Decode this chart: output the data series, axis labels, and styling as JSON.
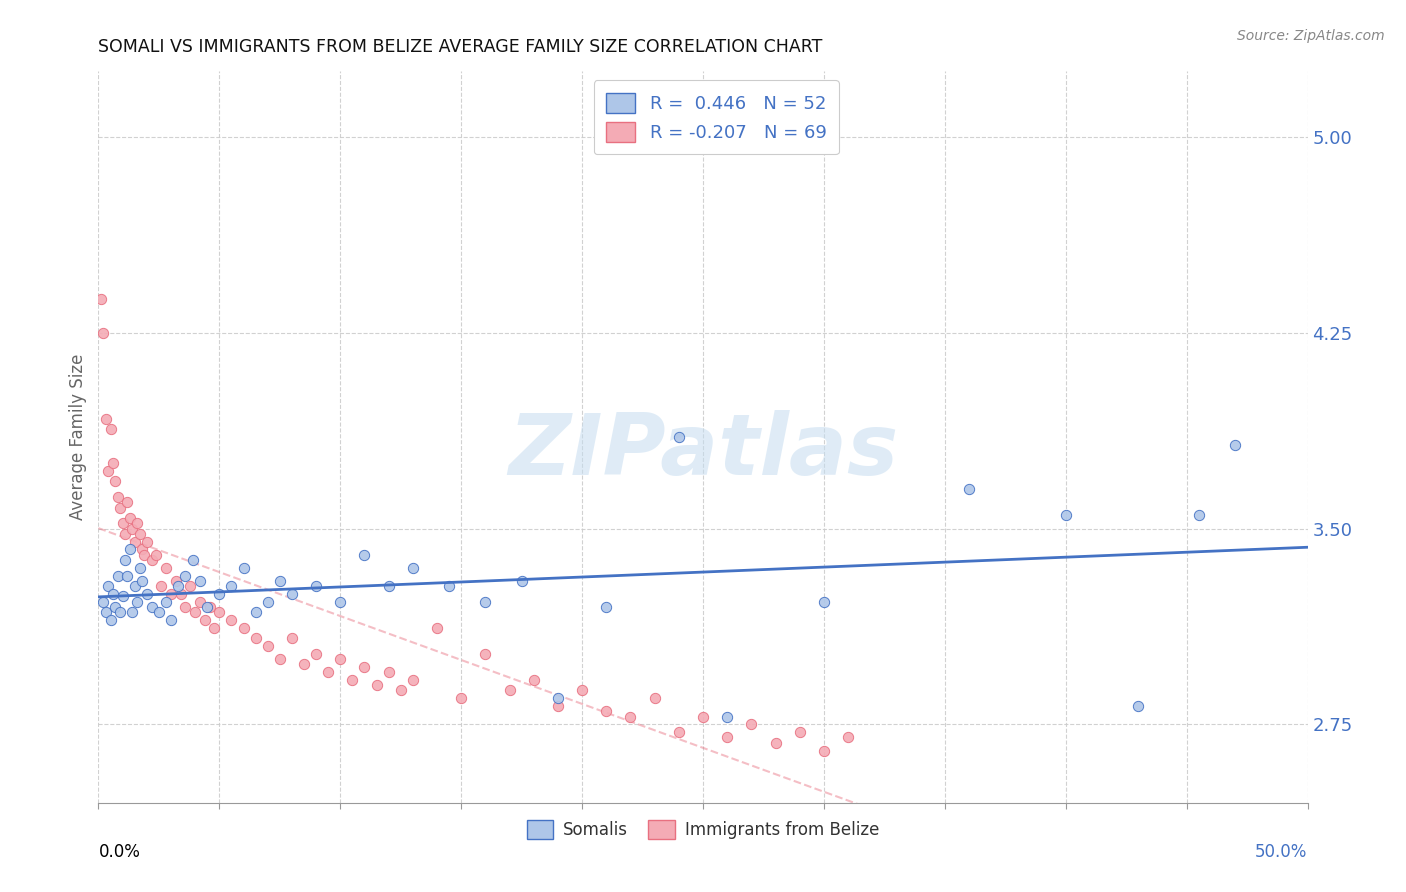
{
  "title": "SOMALI VS IMMIGRANTS FROM BELIZE AVERAGE FAMILY SIZE CORRELATION CHART",
  "source": "Source: ZipAtlas.com",
  "ylabel": "Average Family Size",
  "yticks": [
    2.75,
    3.5,
    4.25,
    5.0
  ],
  "xlim": [
    0.0,
    0.5
  ],
  "ylim": [
    2.45,
    5.25
  ],
  "somali_R": 0.446,
  "somali_N": 52,
  "belize_R": -0.207,
  "belize_N": 69,
  "somali_color": "#aec6e8",
  "somali_line_color": "#4472c4",
  "belize_color": "#f4abb5",
  "belize_line_color": "#e87080",
  "watermark": "ZIPatlas",
  "somali_x": [
    0.002,
    0.003,
    0.004,
    0.005,
    0.006,
    0.007,
    0.008,
    0.009,
    0.01,
    0.011,
    0.012,
    0.013,
    0.014,
    0.015,
    0.016,
    0.017,
    0.018,
    0.02,
    0.022,
    0.025,
    0.028,
    0.03,
    0.033,
    0.036,
    0.039,
    0.042,
    0.045,
    0.05,
    0.055,
    0.06,
    0.065,
    0.07,
    0.075,
    0.08,
    0.09,
    0.1,
    0.11,
    0.12,
    0.13,
    0.145,
    0.16,
    0.175,
    0.19,
    0.21,
    0.24,
    0.26,
    0.3,
    0.36,
    0.4,
    0.43,
    0.455,
    0.47
  ],
  "somali_y": [
    3.22,
    3.18,
    3.28,
    3.15,
    3.25,
    3.2,
    3.32,
    3.18,
    3.24,
    3.38,
    3.32,
    3.42,
    3.18,
    3.28,
    3.22,
    3.35,
    3.3,
    3.25,
    3.2,
    3.18,
    3.22,
    3.15,
    3.28,
    3.32,
    3.38,
    3.3,
    3.2,
    3.25,
    3.28,
    3.35,
    3.18,
    3.22,
    3.3,
    3.25,
    3.28,
    3.22,
    3.4,
    3.28,
    3.35,
    3.28,
    3.22,
    3.3,
    2.85,
    3.2,
    3.85,
    2.78,
    3.22,
    3.65,
    3.55,
    2.82,
    3.55,
    3.82
  ],
  "belize_x": [
    0.001,
    0.002,
    0.003,
    0.004,
    0.005,
    0.006,
    0.007,
    0.008,
    0.009,
    0.01,
    0.011,
    0.012,
    0.013,
    0.014,
    0.015,
    0.016,
    0.017,
    0.018,
    0.019,
    0.02,
    0.022,
    0.024,
    0.026,
    0.028,
    0.03,
    0.032,
    0.034,
    0.036,
    0.038,
    0.04,
    0.042,
    0.044,
    0.046,
    0.048,
    0.05,
    0.055,
    0.06,
    0.065,
    0.07,
    0.075,
    0.08,
    0.085,
    0.09,
    0.095,
    0.1,
    0.105,
    0.11,
    0.115,
    0.12,
    0.125,
    0.13,
    0.14,
    0.15,
    0.16,
    0.17,
    0.18,
    0.19,
    0.2,
    0.21,
    0.22,
    0.23,
    0.24,
    0.25,
    0.26,
    0.27,
    0.28,
    0.29,
    0.3,
    0.31
  ],
  "belize_y": [
    4.38,
    4.25,
    3.92,
    3.72,
    3.88,
    3.75,
    3.68,
    3.62,
    3.58,
    3.52,
    3.48,
    3.6,
    3.54,
    3.5,
    3.45,
    3.52,
    3.48,
    3.42,
    3.4,
    3.45,
    3.38,
    3.4,
    3.28,
    3.35,
    3.25,
    3.3,
    3.25,
    3.2,
    3.28,
    3.18,
    3.22,
    3.15,
    3.2,
    3.12,
    3.18,
    3.15,
    3.12,
    3.08,
    3.05,
    3.0,
    3.08,
    2.98,
    3.02,
    2.95,
    3.0,
    2.92,
    2.97,
    2.9,
    2.95,
    2.88,
    2.92,
    3.12,
    2.85,
    3.02,
    2.88,
    2.92,
    2.82,
    2.88,
    2.8,
    2.78,
    2.85,
    2.72,
    2.78,
    2.7,
    2.75,
    2.68,
    2.72,
    2.65,
    2.7
  ]
}
